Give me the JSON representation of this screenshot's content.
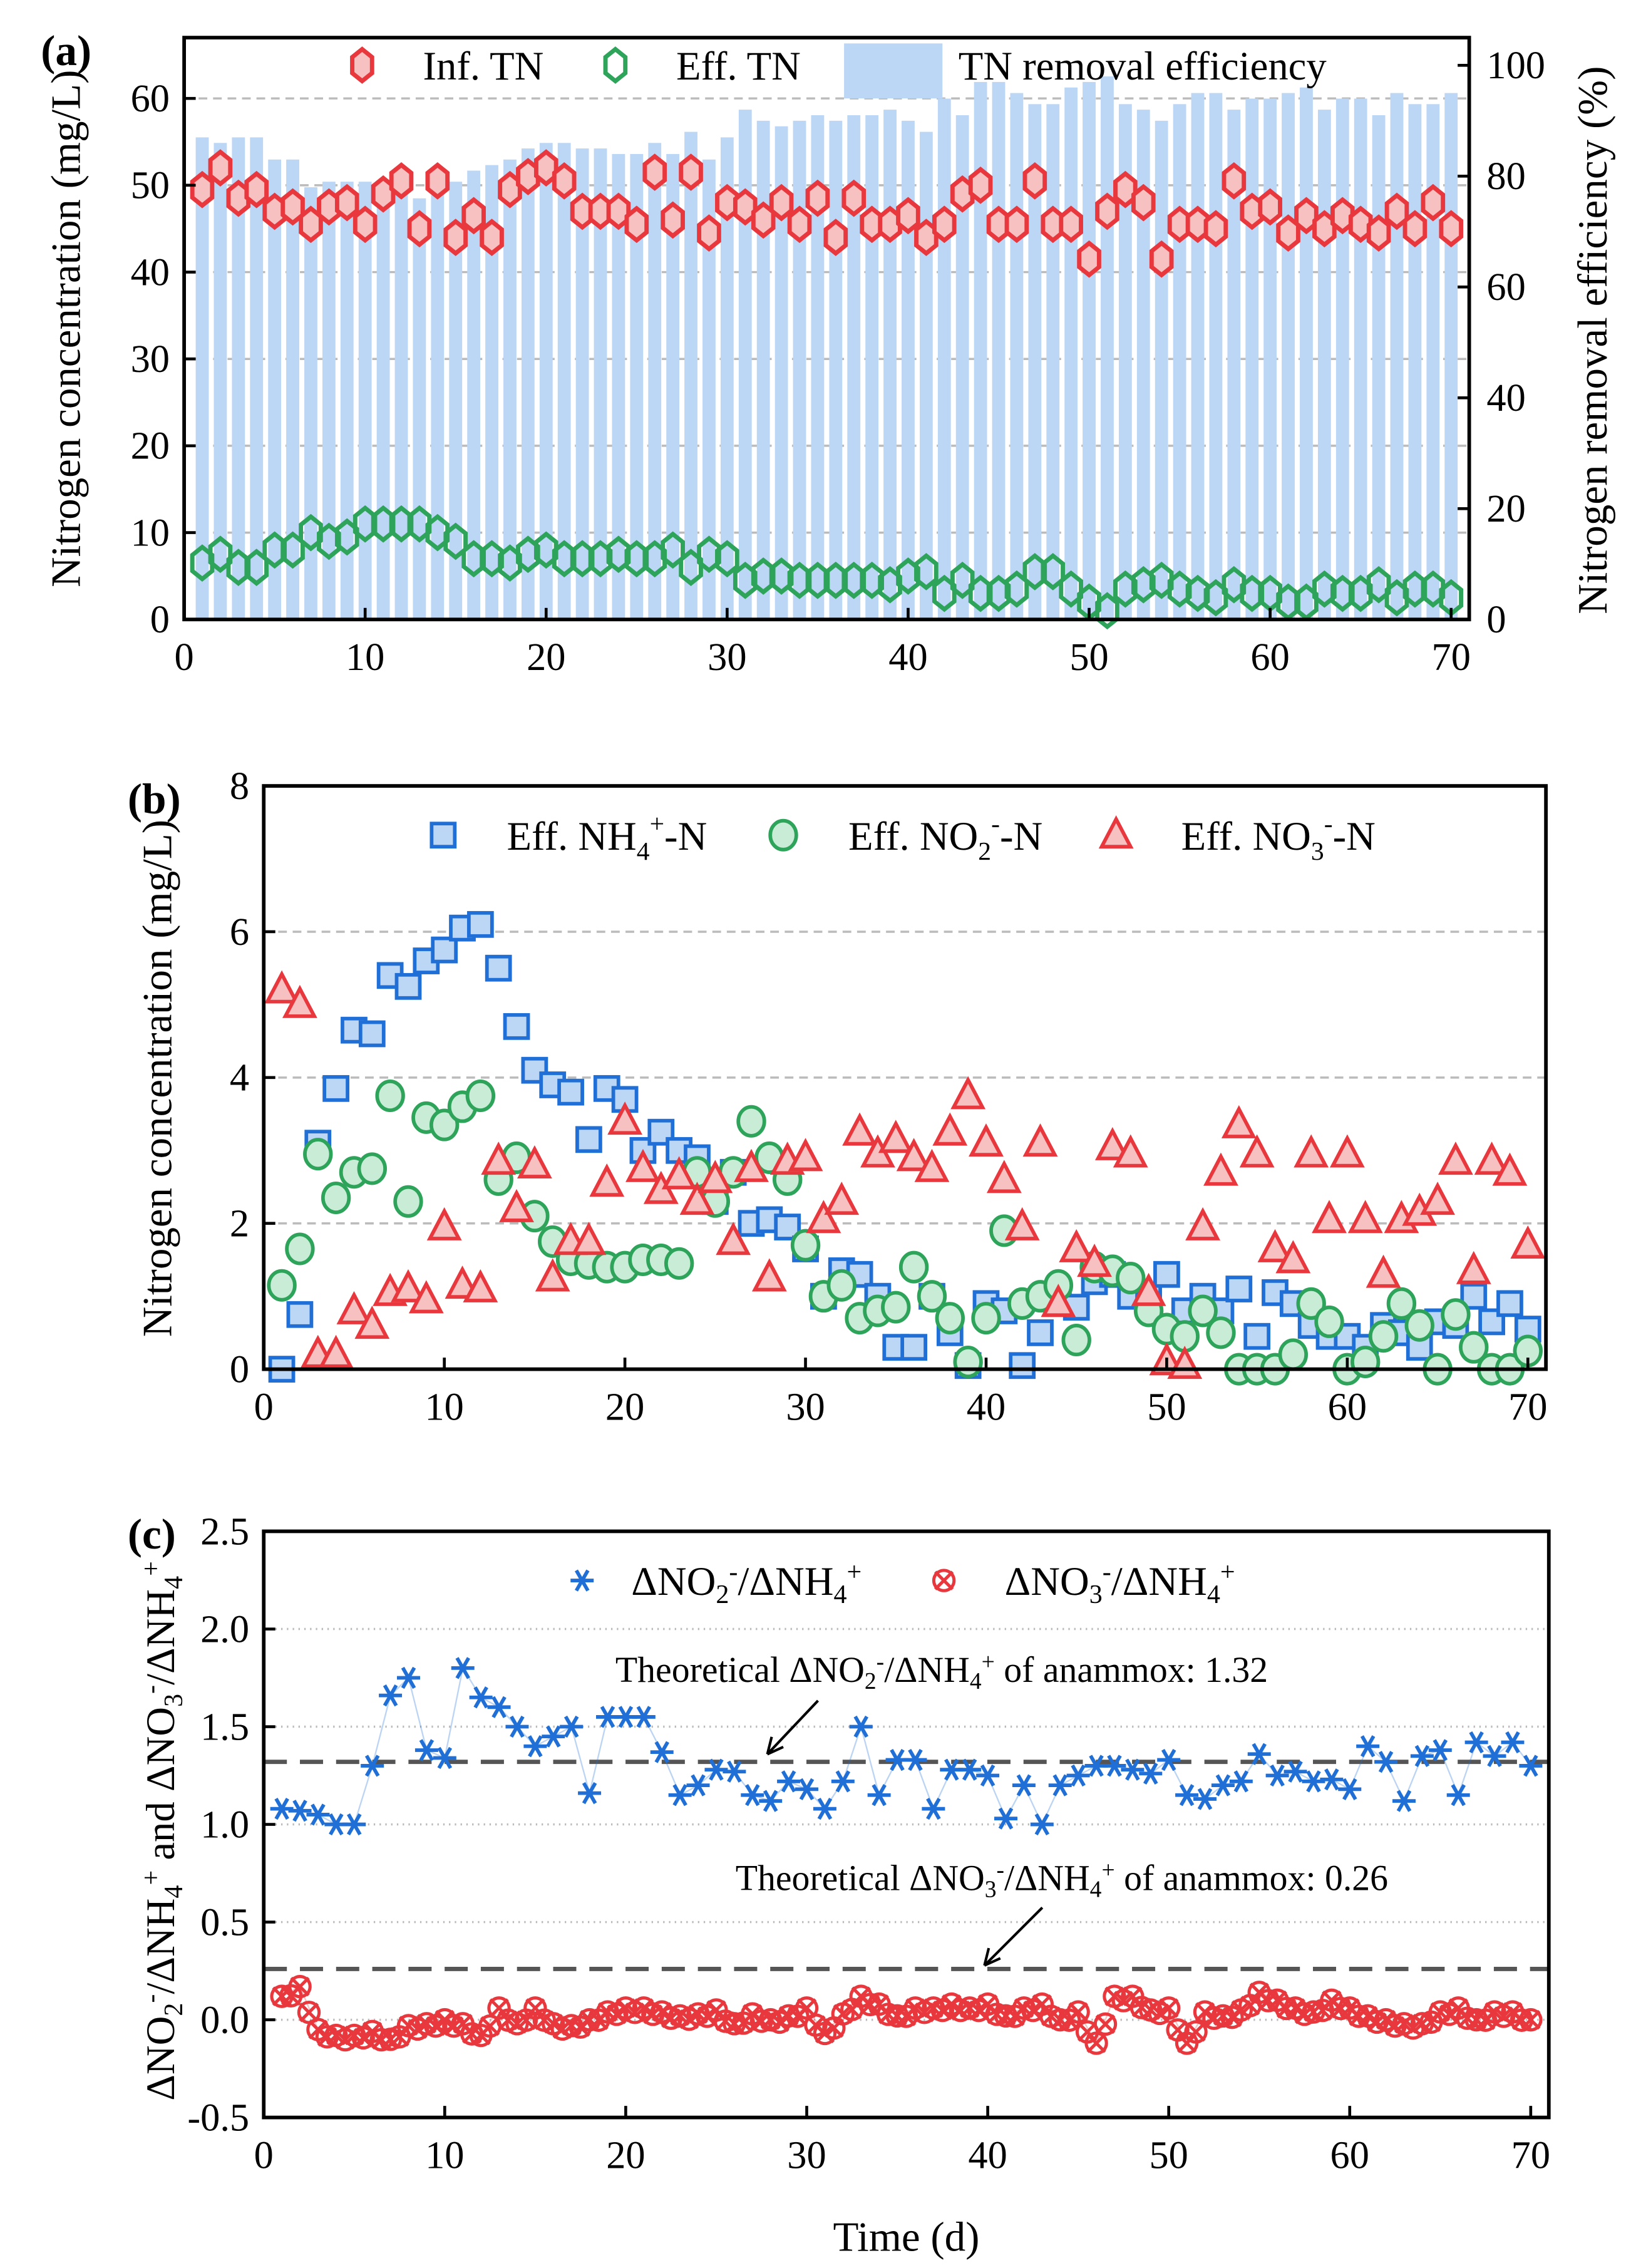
{
  "colors": {
    "red": "#e8383d",
    "red_fill": "#f7c1c1",
    "green": "#2ea35a",
    "green_fill": "#c9ecd6",
    "blue": "#1f6fd6",
    "blue_fill": "#bcd6f5",
    "bar": "#bcd6f5",
    "ref_line": "#555555",
    "grid": "#bbbbbb"
  },
  "chart_data": [
    {
      "panel_label": "(a)",
      "type": "bar+scatter",
      "xlim": [
        0,
        71
      ],
      "xticks": [
        0,
        10,
        20,
        30,
        40,
        50,
        60,
        70
      ],
      "ylabel": "Nitrogen concentration (mg/L)",
      "ylim": [
        0,
        67
      ],
      "yticks": [
        0,
        10,
        20,
        30,
        40,
        50,
        60
      ],
      "y2label": "Nitrogen removal efficiency (%)",
      "y2lim": [
        0,
        105
      ],
      "y2ticks": [
        0,
        20,
        40,
        60,
        80,
        100
      ],
      "grid": "horizontal dashed",
      "legend_placement": "top",
      "x": [
        1,
        2,
        3,
        4,
        5,
        6,
        7,
        8,
        9,
        10,
        11,
        12,
        13,
        14,
        15,
        16,
        17,
        18,
        19,
        20,
        21,
        22,
        23,
        24,
        25,
        26,
        27,
        28,
        29,
        30,
        31,
        32,
        33,
        34,
        35,
        36,
        37,
        38,
        39,
        40,
        41,
        42,
        43,
        44,
        45,
        46,
        47,
        48,
        49,
        50,
        51,
        52,
        53,
        54,
        55,
        56,
        57,
        58,
        59,
        60,
        61,
        62,
        63,
        64,
        65,
        66,
        67,
        68,
        69,
        70
      ],
      "series": [
        {
          "name": "Inf. TN",
          "marker": "hexagon",
          "axis": "left",
          "values": [
            49.5,
            52,
            48.5,
            49.5,
            47,
            47.5,
            45.5,
            47.5,
            48,
            45.5,
            49,
            50.5,
            45,
            50.5,
            44,
            46.5,
            44,
            49.5,
            51,
            52,
            50.5,
            47,
            47,
            47,
            45.5,
            51.5,
            46,
            51.5,
            44.5,
            48,
            47.5,
            46,
            48,
            45.5,
            48.5,
            44,
            48.5,
            45.5,
            45.5,
            46.5,
            44,
            45.5,
            49,
            50,
            45.5,
            45.5,
            50.5,
            45.5,
            45.5,
            41.5,
            47,
            49.5,
            48,
            41.5,
            45.5,
            45.5,
            45,
            50.5,
            47,
            47.5,
            44.5,
            46.5,
            45,
            46.5,
            45.5,
            44.5,
            47,
            45,
            48,
            45
          ]
        },
        {
          "name": "Eff. TN",
          "marker": "hexagon-open",
          "axis": "left",
          "values": [
            6.5,
            7.5,
            6,
            6,
            8,
            8,
            10,
            9,
            9.5,
            11,
            11,
            11,
            11,
            10,
            9,
            7,
            7,
            6.5,
            7.5,
            8,
            7,
            7,
            7,
            7.5,
            7,
            7,
            8,
            6,
            7.5,
            7,
            4.5,
            5,
            5,
            4.5,
            4.5,
            4.5,
            4.5,
            4.5,
            4,
            5,
            5.5,
            3,
            4.5,
            3,
            3,
            3.5,
            5.5,
            5.5,
            3.5,
            2,
            1,
            3.5,
            4,
            4.5,
            3.5,
            3,
            2.5,
            4,
            3,
            3,
            2,
            2,
            3.5,
            3,
            3,
            4,
            2.5,
            3.5,
            3.5,
            2.5
          ]
        },
        {
          "name": "TN removal efficiency",
          "marker": "bar",
          "axis": "right",
          "values": [
            87,
            86,
            87,
            87,
            83,
            83,
            78,
            79,
            79,
            79,
            78,
            78,
            76,
            77,
            79,
            81,
            82,
            83,
            85,
            86,
            86,
            85,
            85,
            84,
            84,
            86,
            84,
            88,
            83,
            87,
            92,
            90,
            89,
            90,
            91,
            90,
            91,
            91,
            92,
            90,
            88,
            94,
            91,
            97,
            97,
            95,
            93,
            93,
            96,
            97,
            98,
            93,
            92,
            90,
            93,
            95,
            95,
            92,
            94,
            94,
            95,
            96,
            92,
            94,
            94,
            91,
            95,
            93,
            93,
            95
          ]
        }
      ]
    },
    {
      "panel_label": "(b)",
      "type": "scatter",
      "xlim": [
        0,
        71
      ],
      "xticks": [
        0,
        10,
        20,
        30,
        40,
        50,
        60,
        70
      ],
      "ylabel": "Nitrogen concentration (mg/L)",
      "ylim": [
        0,
        8
      ],
      "yticks": [
        0,
        2,
        4,
        6,
        8
      ],
      "grid": "horizontal dashed",
      "legend_placement": "top",
      "x": [
        1,
        2,
        3,
        4,
        5,
        6,
        7,
        8,
        9,
        10,
        11,
        12,
        13,
        14,
        15,
        16,
        17,
        18,
        19,
        20,
        21,
        22,
        23,
        24,
        25,
        26,
        27,
        28,
        29,
        30,
        31,
        32,
        33,
        34,
        35,
        36,
        37,
        38,
        39,
        40,
        41,
        42,
        43,
        44,
        45,
        46,
        47,
        48,
        49,
        50,
        51,
        52,
        53,
        54,
        55,
        56,
        57,
        58,
        59,
        60,
        61,
        62,
        63,
        64,
        65,
        66,
        67,
        68,
        69,
        70
      ],
      "series": [
        {
          "name": "Eff. NH4+-N",
          "label_main": "Eff. NH",
          "label_sub": "4",
          "label_sup": "+",
          "label_tail": "-N",
          "marker": "square",
          "values": [
            0,
            0.75,
            3.1,
            3.85,
            4.65,
            4.6,
            5.4,
            5.25,
            5.6,
            5.75,
            6.05,
            6.1,
            5.5,
            4.7,
            4.1,
            3.9,
            3.8,
            3.15,
            3.85,
            3.7,
            3.0,
            3.25,
            3.0,
            2.9,
            2.3,
            2.7,
            2.0,
            2.05,
            1.95,
            1.65,
            1.0,
            1.35,
            1.3,
            1.0,
            0.3,
            0.3,
            1.0,
            0.5,
            0.05,
            0.9,
            0.8,
            0.05,
            0.5,
            1.0,
            0.85,
            1.2,
            1.3,
            1.0,
            1.0,
            1.3,
            0.8,
            1.0,
            0.8,
            1.1,
            0.45,
            1.05,
            0.9,
            0.6,
            0.45,
            0.45,
            0.3,
            0.6,
            0.5,
            0.3,
            0.65,
            0.6,
            1.0,
            0.65,
            0.9,
            0.55
          ]
        },
        {
          "name": "Eff. NO2--N",
          "label_main": "Eff. NO",
          "label_sub": "2",
          "label_sup": "-",
          "label_tail": "-N",
          "marker": "circle",
          "values": [
            1.15,
            1.65,
            2.95,
            2.35,
            2.7,
            2.75,
            3.75,
            2.3,
            3.45,
            3.35,
            3.6,
            3.75,
            2.6,
            2.9,
            2.1,
            1.75,
            1.5,
            1.45,
            1.4,
            1.4,
            1.5,
            1.5,
            1.45,
            2.7,
            2.3,
            2.7,
            3.4,
            2.9,
            2.6,
            1.7,
            1.0,
            1.15,
            0.7,
            0.8,
            0.85,
            1.4,
            1.0,
            0.7,
            0.1,
            0.7,
            1.9,
            0.9,
            1.0,
            1.15,
            0.4,
            1.4,
            1.35,
            1.25,
            0.8,
            0.55,
            0.45,
            0.8,
            0.5,
            0.0,
            0.0,
            0.0,
            0.2,
            0.9,
            0.65,
            0.0,
            0.1,
            0.45,
            0.9,
            0.6,
            0.0,
            0.75,
            0.3,
            0.0,
            0.0,
            0.25
          ]
        },
        {
          "name": "Eff. NO3--N",
          "label_main": "Eff. NO",
          "label_sub": "3",
          "label_sup": "-",
          "label_tail": "-N",
          "marker": "triangle",
          "values": [
            5.2,
            5.0,
            0.2,
            0.2,
            0.8,
            0.6,
            1.05,
            1.1,
            0.95,
            1.95,
            1.15,
            1.1,
            2.85,
            2.2,
            2.8,
            1.25,
            1.75,
            1.75,
            2.55,
            3.4,
            2.75,
            2.45,
            2.65,
            2.3,
            2.6,
            1.75,
            2.75,
            1.25,
            2.85,
            2.9,
            2.05,
            2.3,
            3.25,
            2.95,
            3.15,
            2.9,
            2.75,
            3.25,
            3.75,
            3.1,
            2.6,
            1.95,
            3.1,
            0.9,
            1.65,
            1.45,
            3.05,
            2.95,
            1.05,
            0.1,
            0.05,
            1.95,
            2.7,
            3.35,
            2.95,
            1.65,
            1.5,
            2.95,
            2.05,
            2.95,
            2.05,
            1.3,
            2.05,
            2.15,
            2.3,
            2.85,
            1.35,
            2.85,
            2.7,
            1.7
          ]
        }
      ]
    },
    {
      "panel_label": "(c)",
      "type": "scatter",
      "xlabel": "Time (d)",
      "xlim": [
        0,
        71
      ],
      "xticks": [
        0,
        10,
        20,
        30,
        40,
        50,
        60,
        70
      ],
      "ylabel": "ΔNO2-/ΔNH4+ and ΔNO3-/ΔNH4+",
      "ylabel_parts": [
        "ΔNO",
        "2",
        "-",
        "/ΔNH",
        "4",
        "+",
        " and ΔNO",
        "3",
        "-",
        "/ΔNH",
        "4",
        "+"
      ],
      "ylim": [
        -0.5,
        2.5
      ],
      "yticks": [
        "-0.5",
        "0.0",
        "0.5",
        "1.0",
        "1.5",
        "2.0",
        "2.5"
      ],
      "grid": "horizontal dotted",
      "legend_placement": "top",
      "x": [
        1,
        2,
        3,
        4,
        5,
        6,
        7,
        8,
        9,
        10,
        11,
        12,
        13,
        14,
        15,
        16,
        17,
        18,
        19,
        20,
        21,
        22,
        23,
        24,
        25,
        26,
        27,
        28,
        29,
        30,
        31,
        32,
        33,
        34,
        35,
        36,
        37,
        38,
        39,
        40,
        41,
        42,
        43,
        44,
        45,
        46,
        47,
        48,
        49,
        50,
        51,
        52,
        53,
        54,
        55,
        56,
        57,
        58,
        59,
        60,
        61,
        62,
        63,
        64,
        65,
        66,
        67,
        68,
        69,
        70
      ],
      "series": [
        {
          "name": "ΔNO2-/ΔNH4+",
          "label_parts": [
            "ΔNO",
            "2",
            "-",
            "/ΔNH",
            "4",
            "+"
          ],
          "marker": "asterisk",
          "values": [
            1.08,
            1.07,
            1.05,
            1.0,
            1.0,
            1.3,
            1.66,
            1.75,
            1.38,
            1.34,
            1.8,
            1.65,
            1.6,
            1.5,
            1.4,
            1.45,
            1.5,
            1.16,
            1.55,
            1.55,
            1.55,
            1.37,
            1.15,
            1.2,
            1.28,
            1.27,
            1.15,
            1.12,
            1.22,
            1.18,
            1.08,
            1.22,
            1.5,
            1.15,
            1.33,
            1.33,
            1.08,
            1.28,
            1.28,
            1.25,
            1.03,
            1.2,
            1.0,
            1.2,
            1.25,
            1.3,
            1.3,
            1.28,
            1.26,
            1.33,
            1.15,
            1.13,
            1.2,
            1.22,
            1.36,
            1.25,
            1.27,
            1.22,
            1.23,
            1.18,
            1.4,
            1.32,
            1.12,
            1.35,
            1.38,
            1.15,
            1.42,
            1.35,
            1.42,
            1.3
          ]
        },
        {
          "name": "ΔNO3-/ΔNH4+",
          "label_parts": [
            "ΔNO",
            "3",
            "-",
            "/ΔNH",
            "4",
            "+"
          ],
          "marker": "x-circle",
          "values": [
            0.12,
            0.17,
            -0.05,
            -0.08,
            -0.08,
            -0.06,
            -0.1,
            -0.03,
            -0.02,
            0.0,
            -0.02,
            -0.08,
            0.06,
            -0.02,
            0.06,
            -0.02,
            -0.03,
            0.0,
            0.04,
            0.06,
            0.06,
            0.04,
            0.02,
            0.03,
            0.05,
            -0.02,
            0.03,
            0.0,
            0.02,
            0.06,
            -0.07,
            0.03,
            0.12,
            0.08,
            0.02,
            0.06,
            0.06,
            0.08,
            0.06,
            0.08,
            0.02,
            0.06,
            0.08,
            0.0,
            0.04,
            -0.12,
            0.12,
            0.12,
            0.05,
            0.06,
            -0.12,
            0.04,
            0.02,
            0.05,
            0.14,
            0.1,
            0.06,
            0.04,
            0.1,
            0.06,
            0.02,
            0.0,
            -0.02,
            -0.02,
            0.04,
            0.06,
            0.0,
            0.04,
            0.04,
            0.0
          ]
        }
      ],
      "reference_lines": [
        {
          "value": 1.32,
          "label_parts": [
            "Theoretical ΔNO",
            "2",
            "-",
            "/ΔNH",
            "4",
            "+",
            " of anammox: 1.32"
          ]
        },
        {
          "value": 0.26,
          "label_parts": [
            "Theoretical ΔNO",
            "3",
            "-",
            "/ΔNH",
            "4",
            "+",
            " of anammox: 0.26"
          ]
        }
      ]
    }
  ]
}
